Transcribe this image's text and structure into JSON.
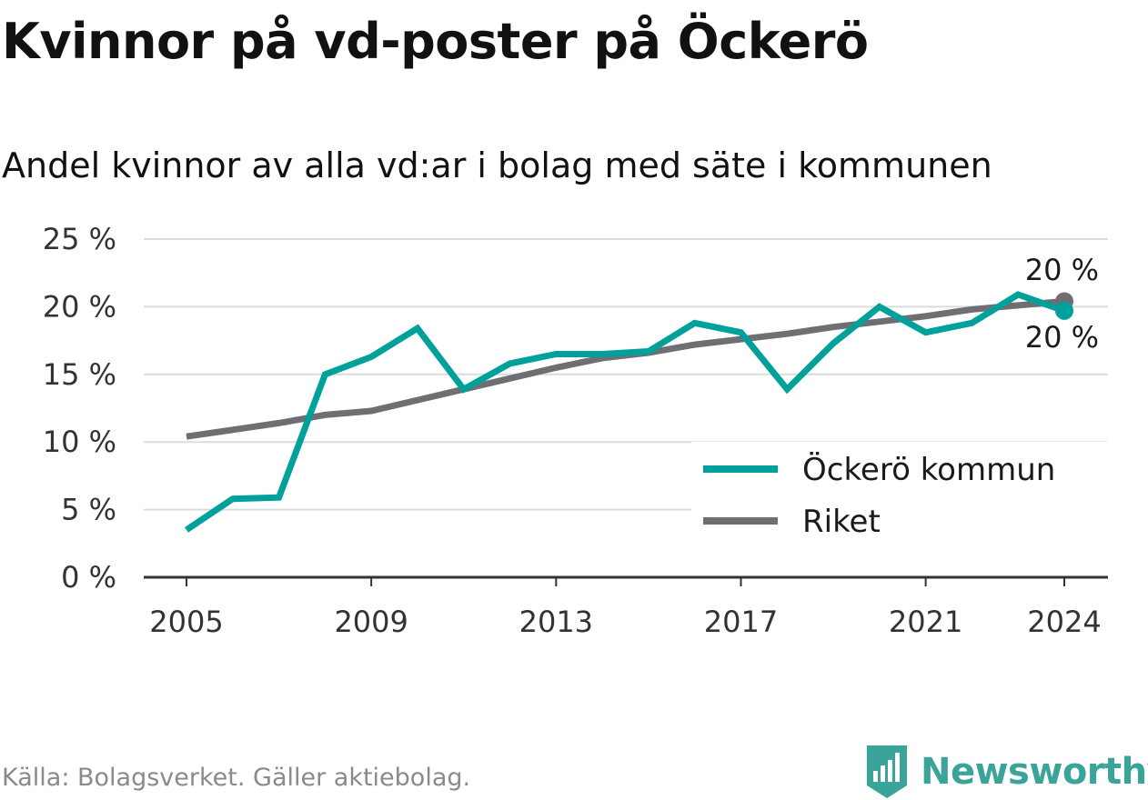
{
  "title": "Kvinnor på vd-poster på Öckerö",
  "subtitle": "Andel kvinnor av alla vd:ar i bolag med säte i kommunen",
  "source": "Källa: Bolagsverket. Gäller aktiebolag.",
  "brand": {
    "name": "Newsworthy",
    "icon": "newsworthy-logo-icon",
    "color": "#3aa39a"
  },
  "chart_data": {
    "type": "line",
    "x": [
      2005,
      2006,
      2007,
      2008,
      2009,
      2010,
      2011,
      2012,
      2013,
      2014,
      2015,
      2016,
      2017,
      2018,
      2019,
      2020,
      2021,
      2022,
      2023,
      2024
    ],
    "x_ticks": [
      2005,
      2009,
      2013,
      2017,
      2021,
      2024
    ],
    "y_ticks": [
      0,
      5,
      10,
      15,
      20,
      25
    ],
    "y_tick_labels": [
      "0 %",
      "5 %",
      "10 %",
      "15 %",
      "20 %",
      "25 %"
    ],
    "ylim": [
      0,
      25
    ],
    "grid": true,
    "legend_position": "bottom-right",
    "series": [
      {
        "name": "Öckerö kommun",
        "color": "#00a19a",
        "values": [
          3.5,
          5.8,
          5.9,
          15.0,
          16.3,
          18.4,
          13.9,
          15.8,
          16.5,
          16.5,
          16.7,
          18.8,
          18.1,
          13.9,
          17.3,
          20.0,
          18.1,
          18.8,
          20.9,
          19.7
        ],
        "end_label": "20 %"
      },
      {
        "name": "Riket",
        "color": "#6f6e73",
        "values": [
          10.4,
          10.9,
          11.4,
          12.0,
          12.3,
          13.1,
          13.9,
          14.7,
          15.5,
          16.2,
          16.6,
          17.2,
          17.6,
          18.0,
          18.5,
          18.9,
          19.3,
          19.8,
          20.1,
          20.4
        ],
        "end_label": "20 %"
      }
    ]
  }
}
